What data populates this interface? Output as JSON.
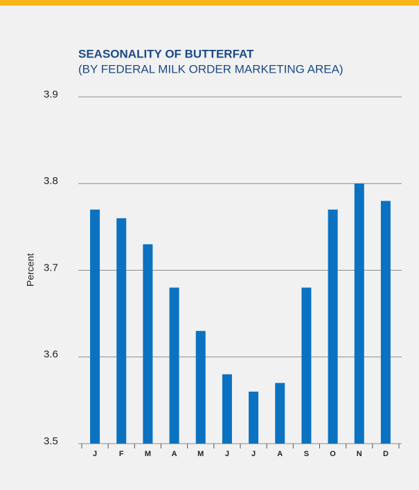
{
  "chart_data": {
    "type": "bar",
    "title": "SEASONALITY OF BUTTERFAT",
    "subtitle": "(BY FEDERAL MILK ORDER MARKETING AREA)",
    "y_label": "Percent",
    "categories": [
      "J",
      "F",
      "M",
      "A",
      "M",
      "J",
      "J",
      "A",
      "S",
      "O",
      "N",
      "D"
    ],
    "values": [
      3.77,
      3.76,
      3.73,
      3.68,
      3.63,
      3.58,
      3.56,
      3.57,
      3.68,
      3.77,
      3.8,
      3.78
    ],
    "color": "#0b72c1",
    "ylim": [
      3.5,
      3.9
    ],
    "yticks": [
      3.5,
      3.6,
      3.7,
      3.8,
      3.9
    ],
    "grid": true
  }
}
